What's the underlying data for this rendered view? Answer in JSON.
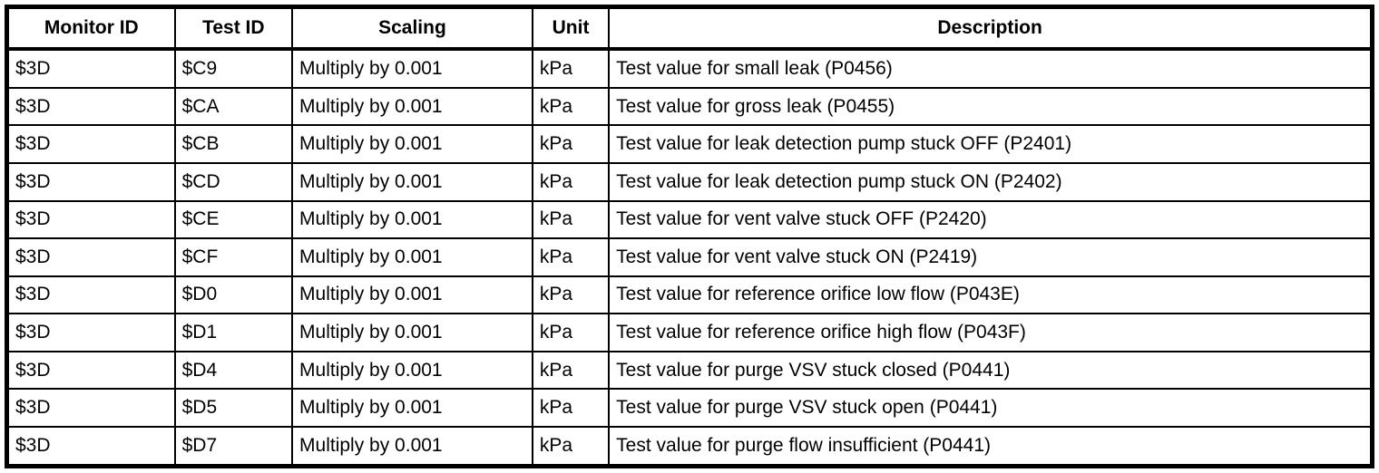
{
  "colors": {
    "text": "#000000",
    "border": "#000000",
    "background": "#ffffff"
  },
  "table": {
    "columns": [
      {
        "key": "monitor_id",
        "label": "Monitor ID"
      },
      {
        "key": "test_id",
        "label": "Test ID"
      },
      {
        "key": "scaling",
        "label": "Scaling"
      },
      {
        "key": "unit",
        "label": "Unit"
      },
      {
        "key": "description",
        "label": "Description"
      }
    ],
    "rows": [
      {
        "monitor_id": "$3D",
        "test_id": "$C9",
        "scaling": "Multiply by 0.001",
        "unit": "kPa",
        "description": "Test value for small leak (P0456)"
      },
      {
        "monitor_id": "$3D",
        "test_id": "$CA",
        "scaling": "Multiply by 0.001",
        "unit": "kPa",
        "description": "Test value for gross leak (P0455)"
      },
      {
        "monitor_id": "$3D",
        "test_id": "$CB",
        "scaling": "Multiply by 0.001",
        "unit": "kPa",
        "description": "Test value for leak detection pump stuck OFF (P2401)"
      },
      {
        "monitor_id": "$3D",
        "test_id": "$CD",
        "scaling": "Multiply by 0.001",
        "unit": "kPa",
        "description": "Test value for leak detection pump stuck ON (P2402)"
      },
      {
        "monitor_id": "$3D",
        "test_id": "$CE",
        "scaling": "Multiply by 0.001",
        "unit": "kPa",
        "description": "Test value for vent valve stuck OFF (P2420)"
      },
      {
        "monitor_id": "$3D",
        "test_id": "$CF",
        "scaling": "Multiply by 0.001",
        "unit": "kPa",
        "description": "Test value for vent valve stuck ON (P2419)"
      },
      {
        "monitor_id": "$3D",
        "test_id": "$D0",
        "scaling": "Multiply by 0.001",
        "unit": "kPa",
        "description": "Test value for reference orifice low flow (P043E)"
      },
      {
        "monitor_id": "$3D",
        "test_id": "$D1",
        "scaling": "Multiply by 0.001",
        "unit": "kPa",
        "description": "Test value for reference orifice high flow (P043F)"
      },
      {
        "monitor_id": "$3D",
        "test_id": "$D4",
        "scaling": "Multiply by 0.001",
        "unit": "kPa",
        "description": "Test value for purge VSV stuck closed (P0441)"
      },
      {
        "monitor_id": "$3D",
        "test_id": "$D5",
        "scaling": "Multiply by 0.001",
        "unit": "kPa",
        "description": "Test value for purge VSV stuck open (P0441)"
      },
      {
        "monitor_id": "$3D",
        "test_id": "$D7",
        "scaling": "Multiply by 0.001",
        "unit": "kPa",
        "description": "Test value for purge flow insufficient (P0441)"
      }
    ]
  }
}
